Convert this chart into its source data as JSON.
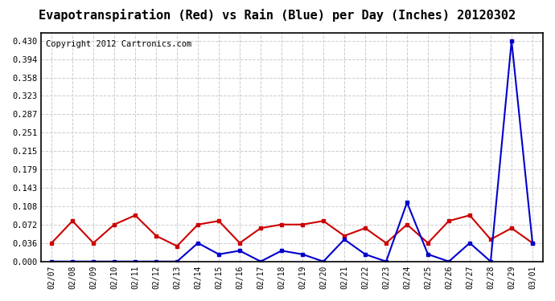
{
  "title": "Evapotranspiration (Red) vs Rain (Blue) per Day (Inches) 20120302",
  "copyright": "Copyright 2012 Cartronics.com",
  "labels": [
    "02/07",
    "02/08",
    "02/09",
    "02/10",
    "02/11",
    "02/12",
    "02/13",
    "02/14",
    "02/15",
    "02/16",
    "02/17",
    "02/18",
    "02/19",
    "02/20",
    "02/21",
    "02/22",
    "02/23",
    "02/24",
    "02/25",
    "02/26",
    "02/27",
    "02/28",
    "02/29",
    "03/01"
  ],
  "red_data": [
    0.036,
    0.079,
    0.036,
    0.072,
    0.09,
    0.05,
    0.03,
    0.072,
    0.079,
    0.036,
    0.065,
    0.072,
    0.072,
    0.079,
    0.05,
    0.065,
    0.036,
    0.072,
    0.036,
    0.079,
    0.09,
    0.043,
    0.065,
    0.036
  ],
  "blue_data": [
    0.0,
    0.0,
    0.0,
    0.0,
    0.0,
    0.0,
    0.0,
    0.036,
    0.014,
    0.021,
    0.0,
    0.021,
    0.014,
    0.0,
    0.043,
    0.014,
    0.0,
    0.115,
    0.014,
    0.0,
    0.036,
    0.0,
    0.43,
    0.036
  ],
  "yticks": [
    0.0,
    0.036,
    0.072,
    0.108,
    0.143,
    0.179,
    0.215,
    0.251,
    0.287,
    0.323,
    0.358,
    0.394,
    0.43
  ],
  "ylim": [
    0.0,
    0.445
  ],
  "bg_color": "#ffffff",
  "plot_bg": "#ffffff",
  "grid_color": "#cccccc",
  "red_color": "#cc0000",
  "blue_color": "#0000cc",
  "title_fontsize": 11,
  "copyright_fontsize": 7.5
}
